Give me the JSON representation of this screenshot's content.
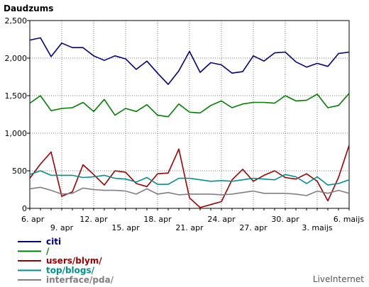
{
  "chart_data": {
    "type": "line",
    "title": "Daudzums",
    "ylim": [
      0,
      2500
    ],
    "yticks": [
      {
        "value": 0,
        "label": "0"
      },
      {
        "value": 500,
        "label": "500"
      },
      {
        "value": 1000,
        "label": "1,000"
      },
      {
        "value": 1500,
        "label": "1,500"
      },
      {
        "value": 2000,
        "label": "2,000"
      },
      {
        "value": 2500,
        "label": "2,500"
      }
    ],
    "x": [
      "6. apr",
      "7. apr",
      "8. apr",
      "9. apr",
      "10. apr",
      "11. apr",
      "12. apr",
      "13. apr",
      "14. apr",
      "15. apr",
      "16. apr",
      "17. apr",
      "18. apr",
      "19. apr",
      "20. apr",
      "21. apr",
      "22. apr",
      "23. apr",
      "24. apr",
      "25. apr",
      "26. apr",
      "27. apr",
      "28. apr",
      "29. apr",
      "30. apr",
      "1. maijs",
      "2. maijs",
      "3. maijs",
      "4. maijs",
      "5. maijs",
      "6. maijs"
    ],
    "xticks_top": [
      {
        "index": 0,
        "label": "6. apr"
      },
      {
        "index": 6,
        "label": "12. apr"
      },
      {
        "index": 12,
        "label": "18. apr"
      },
      {
        "index": 18,
        "label": "24. apr"
      },
      {
        "index": 24,
        "label": "30. apr"
      },
      {
        "index": 30,
        "label": "6. maijs"
      }
    ],
    "xticks_bottom": [
      {
        "index": 3,
        "label": "9. apr"
      },
      {
        "index": 9,
        "label": "15. apr"
      },
      {
        "index": 15,
        "label": "21. apr"
      },
      {
        "index": 21,
        "label": "27. apr"
      },
      {
        "index": 27,
        "label": "3. maijs"
      }
    ],
    "grid": true,
    "legend_position": "bottom-left",
    "series": [
      {
        "name": "citi",
        "color": "#000080",
        "values": [
          2240,
          2270,
          2020,
          2200,
          2140,
          2140,
          2030,
          1970,
          2030,
          1990,
          1850,
          1960,
          1800,
          1650,
          1830,
          2090,
          1810,
          1940,
          1910,
          1800,
          1820,
          2030,
          1960,
          2070,
          2080,
          1950,
          1880,
          1930,
          1890,
          2060,
          2080
        ]
      },
      {
        "name": "/",
        "color": "#008000",
        "values": [
          1400,
          1500,
          1300,
          1330,
          1340,
          1410,
          1290,
          1450,
          1240,
          1330,
          1290,
          1380,
          1240,
          1220,
          1390,
          1280,
          1270,
          1370,
          1430,
          1340,
          1390,
          1410,
          1410,
          1400,
          1500,
          1430,
          1440,
          1520,
          1340,
          1370,
          1530
        ]
      },
      {
        "name": "users/blym/",
        "color": "#a00000",
        "values": [
          400,
          590,
          750,
          160,
          220,
          580,
          450,
          310,
          500,
          480,
          330,
          290,
          460,
          470,
          790,
          140,
          10,
          50,
          90,
          380,
          520,
          360,
          440,
          500,
          410,
          390,
          460,
          360,
          100,
          410,
          840
        ]
      },
      {
        "name": "top/blogs/",
        "color": "#009090",
        "values": [
          450,
          500,
          440,
          440,
          440,
          410,
          420,
          440,
          400,
          390,
          350,
          410,
          320,
          320,
          400,
          400,
          380,
          360,
          370,
          360,
          380,
          400,
          390,
          380,
          450,
          420,
          330,
          420,
          310,
          330,
          380
        ]
      },
      {
        "name": "interface/pda/",
        "color": "#808080",
        "values": [
          260,
          280,
          240,
          190,
          200,
          270,
          250,
          240,
          240,
          230,
          190,
          260,
          190,
          210,
          180,
          190,
          190,
          190,
          180,
          190,
          210,
          230,
          200,
          200,
          200,
          190,
          170,
          230,
          200,
          240,
          200
        ]
      }
    ]
  },
  "brand": "LiveInternet"
}
